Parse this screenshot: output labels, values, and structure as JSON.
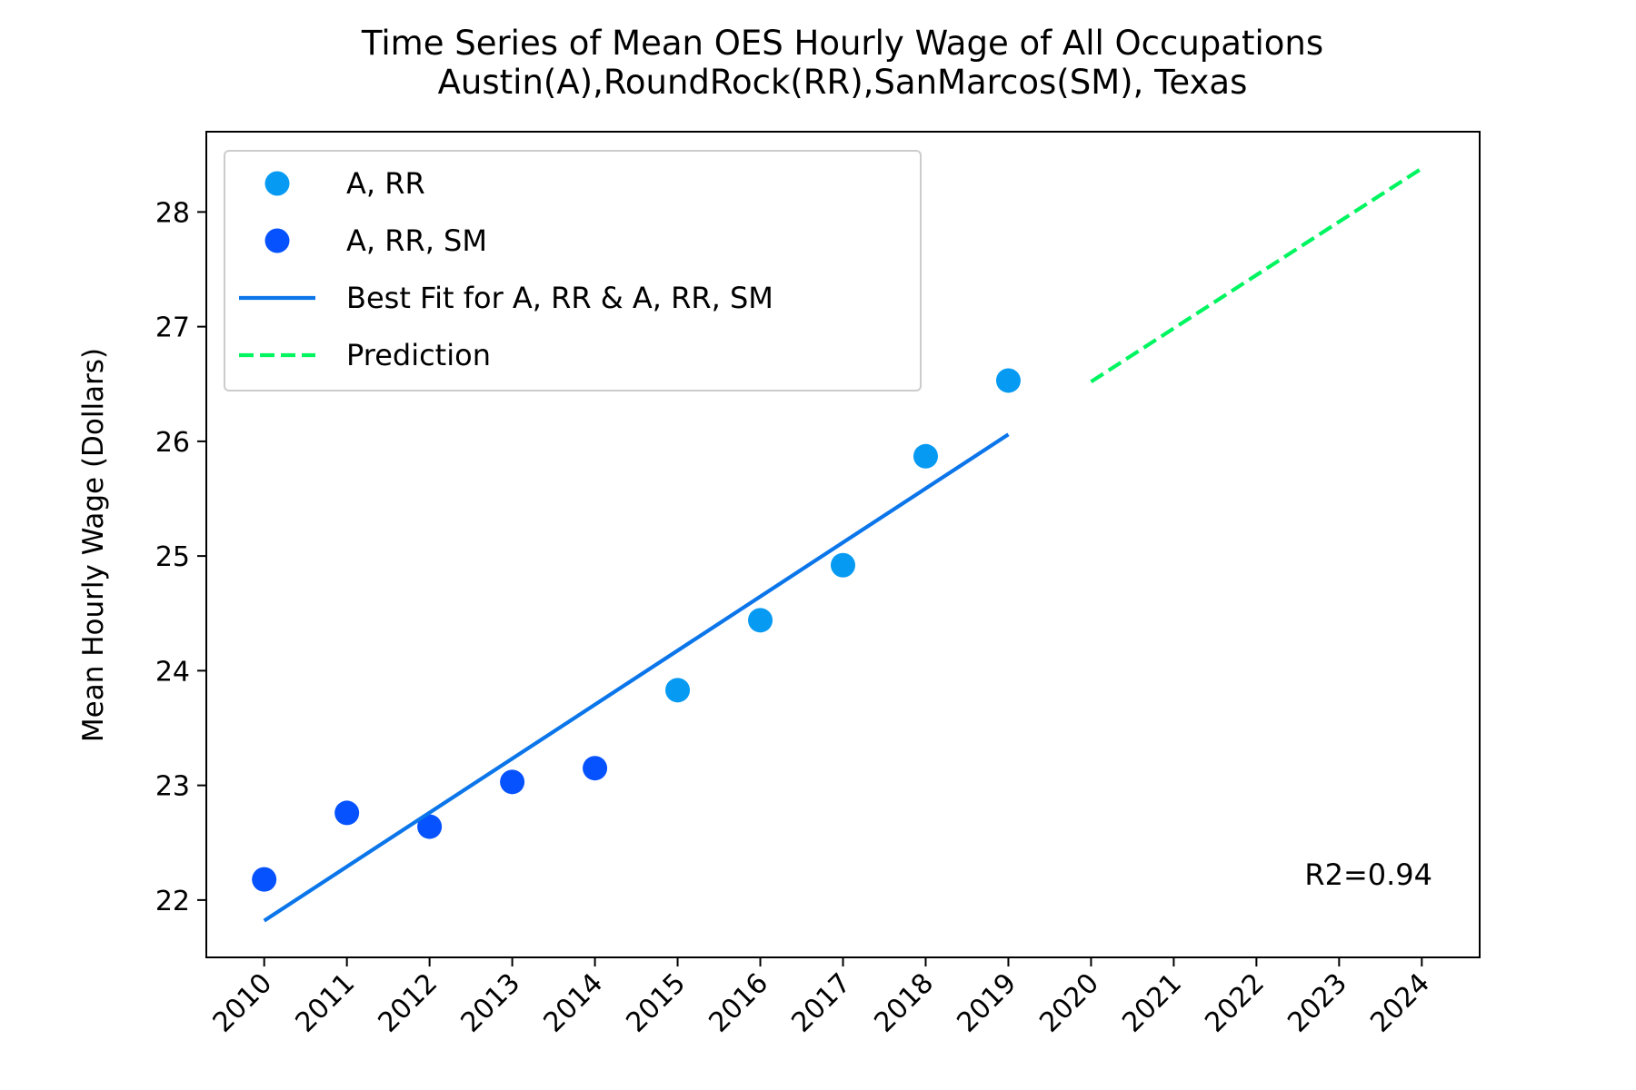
{
  "chart_data": {
    "type": "scatter",
    "title": [
      "Time Series of Mean OES Hourly Wage of All Occupations",
      "Austin(A),RoundRock(RR),SanMarcos(SM), Texas"
    ],
    "xlabel": "",
    "ylabel": "Mean Hourly Wage (Dollars)",
    "xlim": [
      2009.3,
      2024.7
    ],
    "ylim": [
      21.5,
      28.7
    ],
    "x_ticks": [
      2010,
      2011,
      2012,
      2013,
      2014,
      2015,
      2016,
      2017,
      2018,
      2019,
      2020,
      2021,
      2022,
      2023,
      2024
    ],
    "y_ticks": [
      22,
      23,
      24,
      25,
      26,
      27,
      28
    ],
    "grid": false,
    "legend_position": "top-left",
    "series": [
      {
        "name": "A, RR, SM",
        "kind": "scatter",
        "color": "#0652ff",
        "x": [
          2010,
          2011,
          2012,
          2013,
          2014
        ],
        "y": [
          22.18,
          22.76,
          22.64,
          23.03,
          23.15
        ]
      },
      {
        "name": "A, RR",
        "kind": "scatter",
        "color": "#069af3",
        "x": [
          2015,
          2016,
          2017,
          2018,
          2019
        ],
        "y": [
          23.83,
          24.44,
          24.92,
          25.87,
          26.53
        ]
      },
      {
        "name": "Best Fit for A, RR & A, RR, SM",
        "kind": "line",
        "color": "#0b75ea",
        "x": [
          2010,
          2019
        ],
        "y": [
          21.82,
          26.06
        ]
      },
      {
        "name": "Prediction",
        "kind": "dashed-line",
        "color": "#00f560",
        "x": [
          2020,
          2024
        ],
        "y": [
          26.52,
          28.38
        ]
      }
    ],
    "legend_order": [
      "A, RR",
      "A, RR, SM",
      "Best Fit for A, RR & A, RR, SM",
      "Prediction"
    ],
    "annotations": [
      {
        "text": "R2=0.94",
        "position": "bottom-right"
      }
    ]
  }
}
